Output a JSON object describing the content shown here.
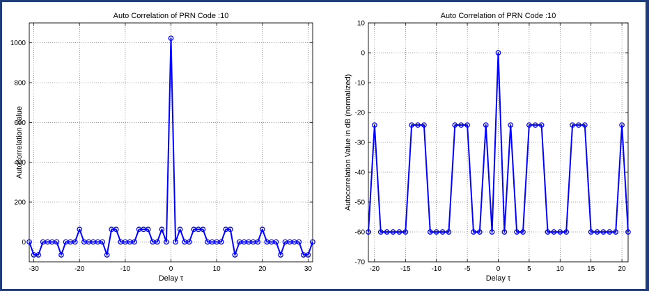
{
  "chart_data": [
    {
      "type": "line",
      "title": "Auto Correlation of PRN Code :10",
      "xlabel": "Delay τ",
      "ylabel": "Autocorrelation Value",
      "xlim": [
        -31,
        31
      ],
      "ylim": [
        -100,
        1100
      ],
      "xticks": [
        -30,
        -20,
        -10,
        0,
        10,
        20,
        30
      ],
      "yticks": [
        0,
        200,
        400,
        600,
        800,
        1000
      ],
      "grid": true,
      "marker": "circle",
      "color": "#0000ff",
      "series": [
        {
          "x": [
            -31,
            -30,
            -29,
            -28,
            -27,
            -26,
            -25,
            -24,
            -23,
            -22,
            -21,
            -20,
            -19,
            -18,
            -17,
            -16,
            -15,
            -14,
            -13,
            -12,
            -11,
            -10,
            -9,
            -8,
            -7,
            -6,
            -5,
            -4,
            -3,
            -2,
            -1,
            0,
            1,
            2,
            3,
            4,
            5,
            6,
            7,
            8,
            9,
            10,
            11,
            12,
            13,
            14,
            15,
            16,
            17,
            18,
            19,
            20,
            21,
            22,
            23,
            24,
            25,
            26,
            27,
            28,
            29,
            30,
            31
          ],
          "y": [
            0,
            -65,
            -65,
            0,
            0,
            0,
            0,
            -65,
            0,
            0,
            0,
            63,
            0,
            0,
            0,
            0,
            0,
            -65,
            63,
            63,
            0,
            0,
            0,
            0,
            63,
            63,
            63,
            0,
            0,
            63,
            0,
            1023,
            0,
            63,
            0,
            0,
            63,
            63,
            63,
            0,
            0,
            0,
            0,
            63,
            63,
            -65,
            0,
            0,
            0,
            0,
            0,
            63,
            0,
            0,
            0,
            -65,
            0,
            0,
            0,
            0,
            -65,
            -65,
            0
          ]
        }
      ]
    },
    {
      "type": "line",
      "title": "Auto Correlation of PRN Code :10",
      "xlabel": "Delay τ",
      "ylabel": "Autocorrelation Value in dB (normalized)",
      "xlim": [
        -21,
        21
      ],
      "ylim": [
        -70,
        10
      ],
      "xticks": [
        -20,
        -15,
        -10,
        -5,
        0,
        5,
        10,
        15,
        20
      ],
      "yticks": [
        10,
        0,
        -10,
        -20,
        -30,
        -40,
        -50,
        -60,
        -70
      ],
      "grid": true,
      "marker": "circle",
      "color": "#0000ff",
      "series": [
        {
          "x": [
            -21,
            -20,
            -19,
            -18,
            -17,
            -16,
            -15,
            -14,
            -13,
            -12,
            -11,
            -10,
            -9,
            -8,
            -7,
            -6,
            -5,
            -4,
            -3,
            -2,
            -1,
            0,
            1,
            2,
            3,
            4,
            5,
            6,
            7,
            8,
            9,
            10,
            11,
            12,
            13,
            14,
            15,
            16,
            17,
            18,
            19,
            20,
            21
          ],
          "y": [
            -60,
            -24.2,
            -60,
            -60,
            -60,
            -60,
            -60,
            -24.2,
            -24.2,
            -24.2,
            -60,
            -60,
            -60,
            -60,
            -24.2,
            -24.2,
            -24.2,
            -60,
            -60,
            -24.2,
            -60,
            0,
            -60,
            -24.2,
            -60,
            -60,
            -24.2,
            -24.2,
            -24.2,
            -60,
            -60,
            -60,
            -60,
            -24.2,
            -24.2,
            -24.2,
            -60,
            -60,
            -60,
            -60,
            -60,
            -24.2,
            -60
          ]
        }
      ]
    }
  ]
}
